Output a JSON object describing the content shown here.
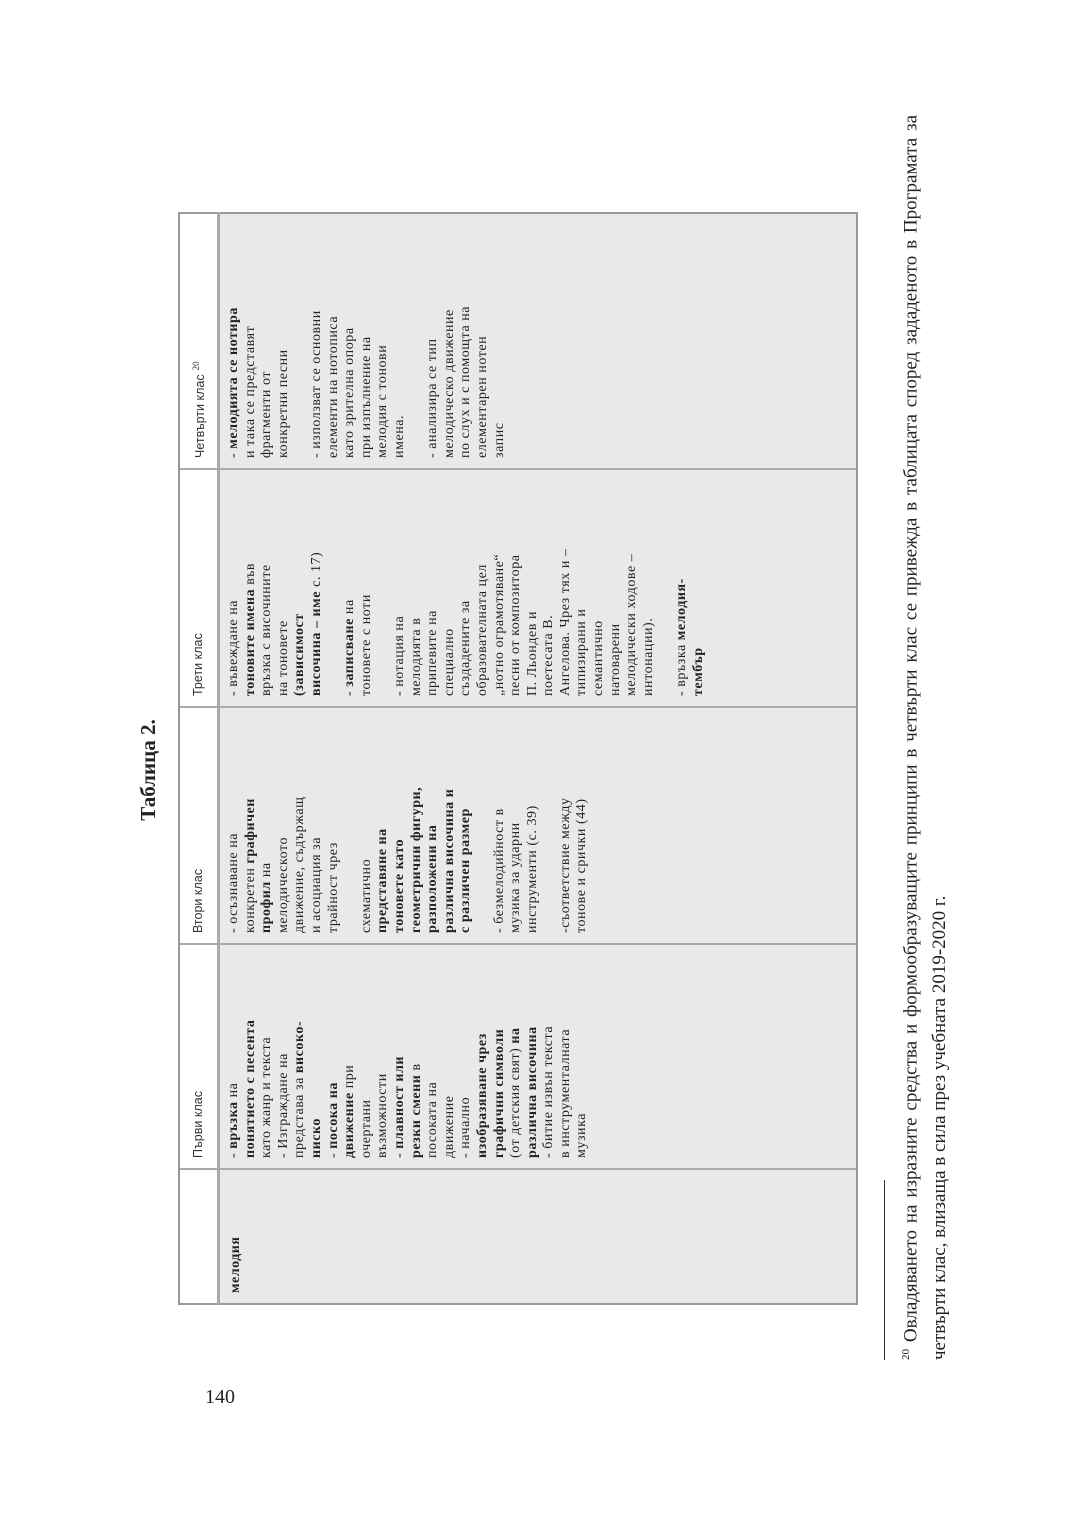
{
  "page_number": "140",
  "title": "Таблица 2.",
  "table": {
    "headers": [
      "",
      "Първи клас",
      "Втори клас",
      "Трети клас",
      "Четвърти клас"
    ],
    "header_footnote_ref": "20",
    "row_label": "мелодия",
    "cells": [
      [
        [
          {
            "t": "- "
          },
          {
            "t": "връзка",
            "b": true
          },
          {
            "t": " на"
          }
        ],
        [
          {
            "t": "понятието с песента",
            "b": true
          }
        ],
        [
          {
            "t": "като жанр и текста"
          }
        ],
        [
          {
            "t": "- Изграждане на"
          }
        ],
        [
          {
            "t": "представа за "
          },
          {
            "t": "високо-",
            "b": true
          }
        ],
        [
          {
            "t": "ниско",
            "b": true
          }
        ],
        [
          {
            "t": "- "
          },
          {
            "t": "посока на",
            "b": true
          }
        ],
        [
          {
            "t": "движение",
            "b": true
          },
          {
            "t": " при"
          }
        ],
        [
          {
            "t": "очертани"
          }
        ],
        [
          {
            "t": "възможности"
          }
        ],
        [
          {
            "t": "- "
          },
          {
            "t": "плавност или",
            "b": true
          }
        ],
        [
          {
            "t": "резки смени",
            "b": true
          },
          {
            "t": " в"
          }
        ],
        [
          {
            "t": "посоката на"
          }
        ],
        [
          {
            "t": "движение"
          }
        ],
        [
          {
            "t": "- начално"
          }
        ],
        [
          {
            "t": "изобразяване чрез",
            "b": true
          }
        ],
        [
          {
            "t": "графични символи",
            "b": true
          }
        ],
        [
          {
            "t": "(от детския свят) "
          },
          {
            "t": "на",
            "b": true
          }
        ],
        [
          {
            "t": "различна височина",
            "b": true
          }
        ],
        [
          {
            "t": "- битие извън текста"
          }
        ],
        [
          {
            "t": "в инструменталната"
          }
        ],
        [
          {
            "t": "музика"
          }
        ]
      ],
      [
        [
          {
            "t": "- осъзнаване на"
          }
        ],
        [
          {
            "t": "конкретен "
          },
          {
            "t": "графичен",
            "b": true
          }
        ],
        [
          {
            "t": "профил",
            "b": true
          },
          {
            "t": " на"
          }
        ],
        [
          {
            "t": "мелодическото"
          }
        ],
        [
          {
            "t": "движение, съдържащ"
          }
        ],
        [
          {
            "t": "и асоциация за"
          }
        ],
        [
          {
            "t": "трайност чрез"
          }
        ],
        [],
        [
          {
            "t": "схематично"
          }
        ],
        [
          {
            "t": "представяне на",
            "b": true
          }
        ],
        [
          {
            "t": "тоновете като",
            "b": true
          }
        ],
        [
          {
            "t": "геометрични фигури,",
            "b": true
          }
        ],
        [
          {
            "t": "разположени на",
            "b": true
          }
        ],
        [
          {
            "t": "различна височина и",
            "b": true
          }
        ],
        [
          {
            "t": "с различен размер",
            "b": true
          }
        ],
        [],
        [
          {
            "t": "- безмелодийност в"
          }
        ],
        [
          {
            "t": "музика за ударни"
          }
        ],
        [
          {
            "t": "инструменти (с. 39)"
          }
        ],
        [],
        [
          {
            "t": "-съответствие между"
          }
        ],
        [
          {
            "t": "тонове и срички (44)"
          }
        ]
      ],
      [
        [
          {
            "t": "- въвеждане на"
          }
        ],
        [
          {
            "t": "тоновите имена",
            "b": true
          },
          {
            "t": " във"
          }
        ],
        [
          {
            "t": "връзка с височините"
          }
        ],
        [
          {
            "t": "на тоновете"
          }
        ],
        [
          {
            "t": "(зависимост",
            "b": true
          }
        ],
        [
          {
            "t": "височина – име",
            "b": true
          },
          {
            "t": " с. 17)"
          }
        ],
        [],
        [
          {
            "t": "- "
          },
          {
            "t": "записване",
            "b": true
          },
          {
            "t": " на"
          }
        ],
        [
          {
            "t": "тоновете с ноти"
          }
        ],
        [],
        [
          {
            "t": "- нотация на"
          }
        ],
        [
          {
            "t": "мелодията в"
          }
        ],
        [
          {
            "t": "припевите на"
          }
        ],
        [
          {
            "t": "специално"
          }
        ],
        [
          {
            "t": "създадените за"
          }
        ],
        [
          {
            "t": "образователната цел"
          }
        ],
        [
          {
            "t": "„нотно ограмотяване“"
          }
        ],
        [
          {
            "t": "песни от композитора"
          }
        ],
        [
          {
            "t": "П. Льондев и"
          }
        ],
        [
          {
            "t": "поетесата В."
          }
        ],
        [
          {
            "t": "Ангелова. Чрез тях и –"
          }
        ],
        [
          {
            "t": "типизирани и"
          }
        ],
        [
          {
            "t": "семантично"
          }
        ],
        [
          {
            "t": "натоварени"
          }
        ],
        [
          {
            "t": "мелодически ходове –"
          }
        ],
        [
          {
            "t": "интонации)."
          }
        ],
        [],
        [
          {
            "t": "- връзка "
          },
          {
            "t": "мелодия-",
            "b": true
          }
        ],
        [
          {
            "t": "тембър",
            "b": true
          }
        ]
      ],
      [
        [
          {
            "t": "- "
          },
          {
            "t": "мелодията се нотира",
            "b": true
          }
        ],
        [
          {
            "t": "и така се представят"
          }
        ],
        [
          {
            "t": "фрагменти от"
          }
        ],
        [
          {
            "t": "конкретни песни"
          }
        ],
        [],
        [
          {
            "t": "- използват се основни"
          }
        ],
        [
          {
            "t": "елементи на нотописа"
          }
        ],
        [
          {
            "t": "като зрителна опора"
          }
        ],
        [
          {
            "t": "при изпълнение на"
          }
        ],
        [
          {
            "t": "мелодия с тонови"
          }
        ],
        [
          {
            "t": "имена."
          }
        ],
        [],
        [
          {
            "t": "- анализира се тип"
          }
        ],
        [
          {
            "t": "мелодическо движение"
          }
        ],
        [
          {
            "t": "по слух и с помощта на"
          }
        ],
        [
          {
            "t": "елементарен нотен"
          }
        ],
        [
          {
            "t": "запис"
          }
        ]
      ]
    ]
  },
  "footnote": {
    "number": "20",
    "text": "Овладяването на изразните средства и формообразуващите принципи в четвърти клас се привежда в таблицата според зададеното в Програмата за четвърти клас, влизаща в сила през учебната 2019-2020 г."
  }
}
